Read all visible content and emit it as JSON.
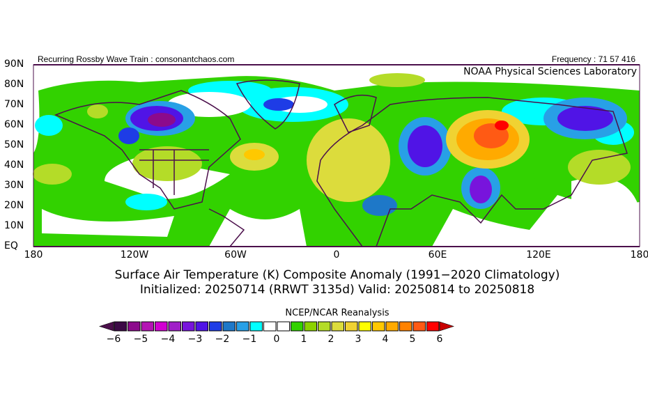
{
  "header": {
    "left_text": "Recurring Rossby Wave Train : consonantchaos.com",
    "right_text": "Frequency : 71 57 416",
    "lab_text": "NOAA Physical Sciences Laboratory"
  },
  "axes": {
    "lat_labels": [
      "90N",
      "80N",
      "70N",
      "60N",
      "50N",
      "40N",
      "30N",
      "20N",
      "10N",
      "EQ"
    ],
    "lon_labels": [
      "180",
      "120W",
      "60W",
      "0",
      "60E",
      "120E",
      "180"
    ]
  },
  "titles": {
    "line1": "Surface Air Temperature (K) Composite Anomaly (1991−2020 Climatology)",
    "line2": "Initialized: 20250714 (RRWT 3135d) Valid: 20250814 to 20250818"
  },
  "colorbar": {
    "title": "NCEP/NCAR Reanalysis",
    "tick_labels": [
      "−6",
      "−5",
      "−4",
      "−3",
      "−2",
      "−1",
      "0",
      "1",
      "2",
      "3",
      "4",
      "5",
      "6"
    ],
    "colors": [
      "#3c0a46",
      "#8c0a8c",
      "#b414b4",
      "#d200d2",
      "#a01ec8",
      "#7814dc",
      "#5014e6",
      "#1e3ce6",
      "#1e78c8",
      "#28a0e6",
      "#00ffff",
      "#ffffff",
      "#ffffff",
      "#32d200",
      "#8cd200",
      "#b4dc28",
      "#dcdc3c",
      "#f0d232",
      "#ffff00",
      "#ffc800",
      "#ffaa00",
      "#ff8200",
      "#ff5a14",
      "#ff0000"
    ],
    "low_color": "#4b0f4b",
    "high_color": "#c80000"
  }
}
